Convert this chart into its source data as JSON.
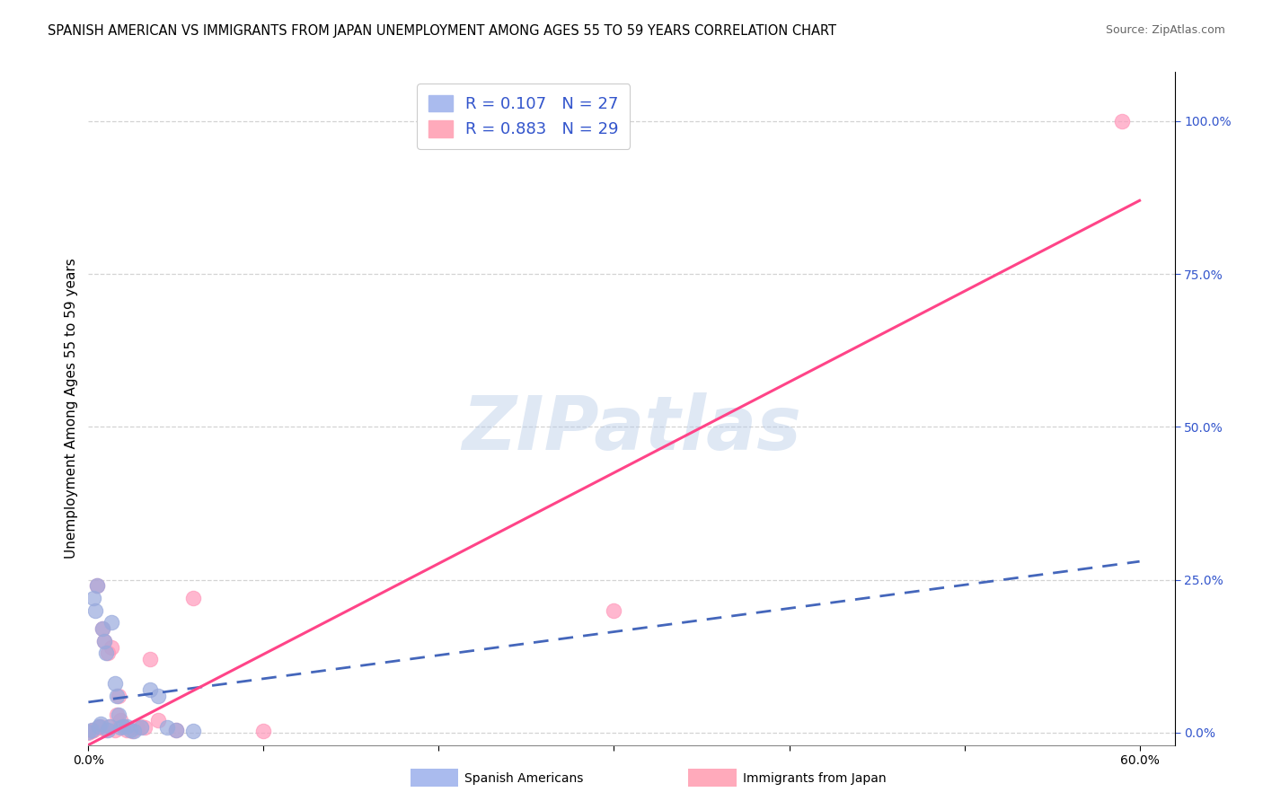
{
  "title": "SPANISH AMERICAN VS IMMIGRANTS FROM JAPAN UNEMPLOYMENT AMONG AGES 55 TO 59 YEARS CORRELATION CHART",
  "source": "Source: ZipAtlas.com",
  "ylabel": "Unemployment Among Ages 55 to 59 years",
  "xlim": [
    0.0,
    0.62
  ],
  "ylim": [
    -0.02,
    1.08
  ],
  "xticks": [
    0.0,
    0.1,
    0.2,
    0.3,
    0.4,
    0.5,
    0.6
  ],
  "xticklabels": [
    "0.0%",
    "",
    "",
    "",
    "",
    "",
    "60.0%"
  ],
  "yticks_right": [
    0.0,
    0.25,
    0.5,
    0.75,
    1.0
  ],
  "ytick_right_labels": [
    "0.0%",
    "25.0%",
    "50.0%",
    "75.0%",
    "100.0%"
  ],
  "background_color": "#ffffff",
  "grid_color": "#c8c8c8",
  "watermark_text": "ZIPatlas",
  "blue_scatter_color": "#99aadd",
  "pink_scatter_color": "#ff99bb",
  "blue_line_color": "#4466bb",
  "pink_line_color": "#ff4488",
  "right_axis_color": "#3355cc",
  "title_fontsize": 10.5,
  "source_fontsize": 9,
  "axis_label_fontsize": 11,
  "tick_fontsize": 10,
  "legend_fontsize": 13,
  "watermark_fontsize": 60,
  "spanish_x": [
    0.0,
    0.002,
    0.003,
    0.004,
    0.005,
    0.006,
    0.007,
    0.008,
    0.009,
    0.01,
    0.011,
    0.012,
    0.013,
    0.015,
    0.016,
    0.017,
    0.018,
    0.02,
    0.022,
    0.024,
    0.026,
    0.03,
    0.035,
    0.04,
    0.045,
    0.05,
    0.06
  ],
  "spanish_y": [
    0.002,
    0.005,
    0.22,
    0.2,
    0.24,
    0.01,
    0.015,
    0.17,
    0.15,
    0.13,
    0.005,
    0.01,
    0.18,
    0.08,
    0.06,
    0.03,
    0.008,
    0.01,
    0.01,
    0.005,
    0.003,
    0.008,
    0.07,
    0.06,
    0.008,
    0.005,
    0.003
  ],
  "japan_x": [
    0.0,
    0.002,
    0.003,
    0.005,
    0.006,
    0.007,
    0.008,
    0.009,
    0.01,
    0.011,
    0.012,
    0.013,
    0.015,
    0.016,
    0.017,
    0.018,
    0.02,
    0.022,
    0.025,
    0.028,
    0.03,
    0.032,
    0.035,
    0.04,
    0.05,
    0.06,
    0.1,
    0.3,
    0.59
  ],
  "japan_y": [
    0.0,
    0.003,
    0.005,
    0.24,
    0.008,
    0.01,
    0.17,
    0.15,
    0.005,
    0.13,
    0.01,
    0.14,
    0.005,
    0.03,
    0.06,
    0.02,
    0.01,
    0.005,
    0.003,
    0.008,
    0.01,
    0.008,
    0.12,
    0.02,
    0.005,
    0.22,
    0.003,
    0.2,
    1.0
  ],
  "blue_line_x0": 0.0,
  "blue_line_y0": 0.05,
  "blue_line_x1": 0.6,
  "blue_line_y1": 0.28,
  "pink_line_x0": 0.0,
  "pink_line_y0": -0.02,
  "pink_line_x1": 0.6,
  "pink_line_y1": 0.87
}
